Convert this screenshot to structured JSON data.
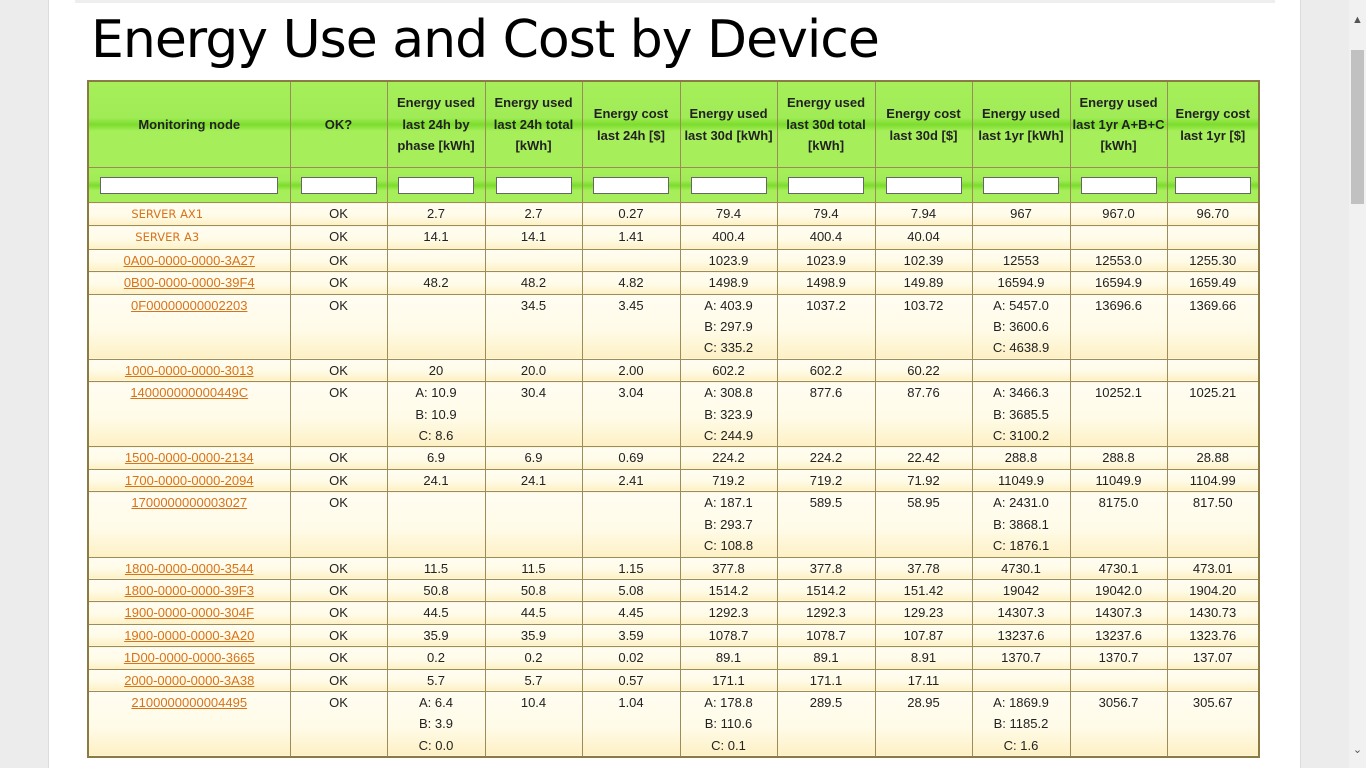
{
  "page": {
    "title": "Energy Use and Cost by Device"
  },
  "headers": [
    "Monitoring node",
    "OK?",
    "Energy used last 24h by phase [kWh]",
    "Energy used last 24h total [kWh]",
    "Energy cost last 24h [$]",
    "Energy used last 30d [kWh]",
    "Energy used last 30d total [kWh]",
    "Energy cost last 30d [$]",
    "Energy used last 1yr [kWh]",
    "Energy used last 1yr A+B+C [kWh]",
    "Energy cost last 1yr [$]"
  ],
  "rows": [
    {
      "node": "SERVER AX1",
      "link": false,
      "cells": [
        "OK",
        "2.7",
        "2.7",
        "0.27",
        "79.4",
        "79.4",
        "7.94",
        "967",
        "967.0",
        "96.70"
      ]
    },
    {
      "node": "SERVER A3",
      "link": false,
      "cells": [
        "OK",
        "14.1",
        "14.1",
        "1.41",
        "400.4",
        "400.4",
        "40.04",
        "",
        "",
        ""
      ]
    },
    {
      "node": "0A00-0000-0000-3A27",
      "link": true,
      "cells": [
        "OK",
        "",
        "",
        "",
        "1023.9",
        "1023.9",
        "102.39",
        "12553",
        "12553.0",
        "1255.30"
      ]
    },
    {
      "node": "0B00-0000-0000-39F4",
      "link": true,
      "cells": [
        "OK",
        "48.2",
        "48.2",
        "4.82",
        "1498.9",
        "1498.9",
        "149.89",
        "16594.9",
        "16594.9",
        "1659.49"
      ]
    },
    {
      "node": "0F00000000002203",
      "link": true,
      "cells": [
        "OK",
        "",
        "34.5",
        "3.45",
        "A: 403.9\nB: 297.9\nC: 335.2",
        "1037.2",
        "103.72",
        "A: 5457.0\nB: 3600.6\nC: 4638.9",
        "13696.6",
        "1369.66"
      ]
    },
    {
      "node": "1000-0000-0000-3013",
      "link": true,
      "cells": [
        "OK",
        "20",
        "20.0",
        "2.00",
        "602.2",
        "602.2",
        "60.22",
        "",
        "",
        ""
      ]
    },
    {
      "node": "140000000000449C",
      "link": true,
      "cells": [
        "OK",
        "A: 10.9\nB: 10.9\nC: 8.6",
        "30.4",
        "3.04",
        "A: 308.8\nB: 323.9\nC: 244.9",
        "877.6",
        "87.76",
        "A: 3466.3\nB: 3685.5\nC: 3100.2",
        "10252.1",
        "1025.21"
      ]
    },
    {
      "node": "1500-0000-0000-2134",
      "link": true,
      "cells": [
        "OK",
        "6.9",
        "6.9",
        "0.69",
        "224.2",
        "224.2",
        "22.42",
        "288.8",
        "288.8",
        "28.88"
      ]
    },
    {
      "node": "1700-0000-0000-2094",
      "link": true,
      "cells": [
        "OK",
        "24.1",
        "24.1",
        "2.41",
        "719.2",
        "719.2",
        "71.92",
        "11049.9",
        "11049.9",
        "1104.99"
      ]
    },
    {
      "node": "1700000000003027",
      "link": true,
      "cells": [
        "OK",
        "",
        "",
        "",
        "A: 187.1\nB: 293.7\nC: 108.8",
        "589.5",
        "58.95",
        "A: 2431.0\nB: 3868.1\nC: 1876.1",
        "8175.0",
        "817.50"
      ]
    },
    {
      "node": "1800-0000-0000-3544",
      "link": true,
      "cells": [
        "OK",
        "11.5",
        "11.5",
        "1.15",
        "377.8",
        "377.8",
        "37.78",
        "4730.1",
        "4730.1",
        "473.01"
      ]
    },
    {
      "node": "1800-0000-0000-39F3",
      "link": true,
      "cells": [
        "OK",
        "50.8",
        "50.8",
        "5.08",
        "1514.2",
        "1514.2",
        "151.42",
        "19042",
        "19042.0",
        "1904.20"
      ]
    },
    {
      "node": "1900-0000-0000-304F",
      "link": true,
      "cells": [
        "OK",
        "44.5",
        "44.5",
        "4.45",
        "1292.3",
        "1292.3",
        "129.23",
        "14307.3",
        "14307.3",
        "1430.73"
      ]
    },
    {
      "node": "1900-0000-0000-3A20",
      "link": true,
      "cells": [
        "OK",
        "35.9",
        "35.9",
        "3.59",
        "1078.7",
        "1078.7",
        "107.87",
        "13237.6",
        "13237.6",
        "1323.76"
      ]
    },
    {
      "node": "1D00-0000-0000-3665",
      "link": true,
      "cells": [
        "OK",
        "0.2",
        "0.2",
        "0.02",
        "89.1",
        "89.1",
        "8.91",
        "1370.7",
        "1370.7",
        "137.07"
      ]
    },
    {
      "node": "2000-0000-0000-3A38",
      "link": true,
      "cells": [
        "OK",
        "5.7",
        "5.7",
        "0.57",
        "171.1",
        "171.1",
        "17.11",
        "",
        "",
        ""
      ]
    },
    {
      "node": "2100000000004495",
      "link": true,
      "cells": [
        "OK",
        "A: 6.4\nB: 3.9\nC: 0.0",
        "10.4",
        "1.04",
        "A: 178.8\nB: 110.6\nC: 0.1",
        "289.5",
        "28.95",
        "A: 1869.9\nB: 1185.2\nC: 1.6",
        "3056.7",
        "305.67"
      ]
    }
  ],
  "scrollbar": {
    "up_icon": "chevron-up-icon",
    "down_icon": "chevron-down-icon"
  }
}
